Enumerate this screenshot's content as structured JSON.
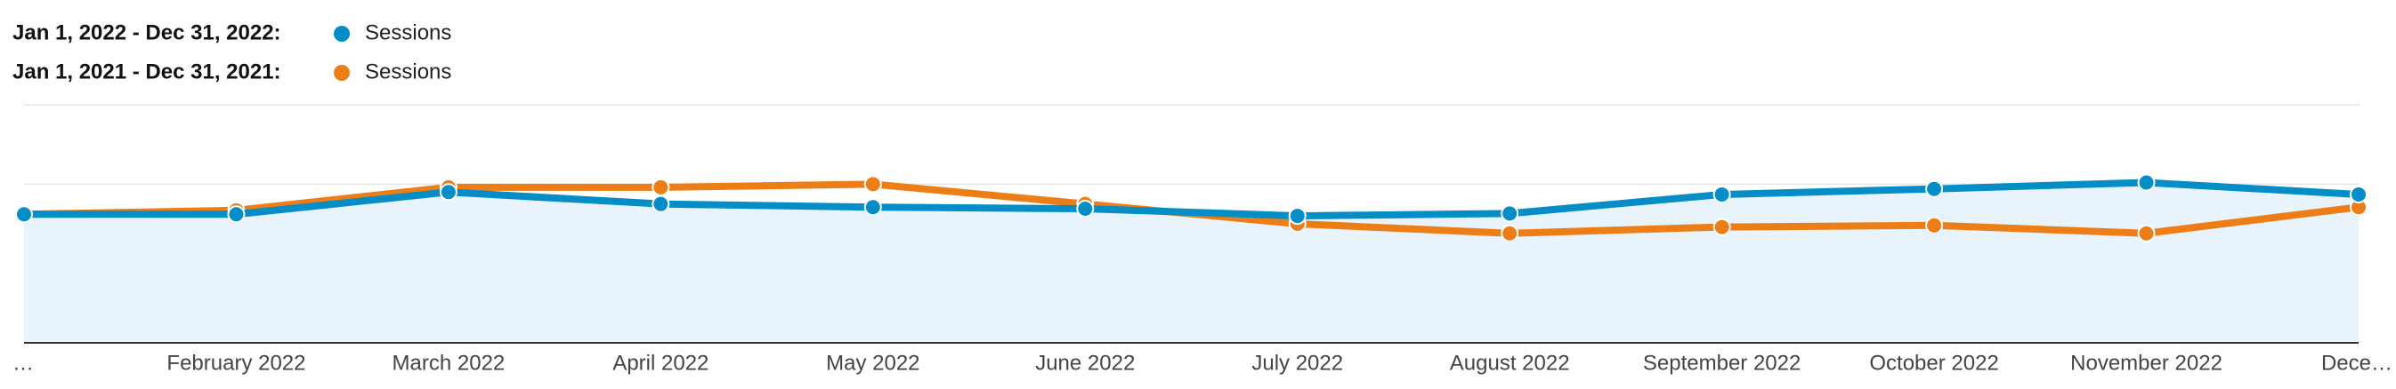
{
  "chart_data": {
    "type": "line",
    "categories": [
      "…",
      "February 2022",
      "March 2022",
      "April 2022",
      "May 2022",
      "June 2022",
      "July 2022",
      "August 2022",
      "September 2022",
      "October 2022",
      "November 2022",
      "Dece…"
    ],
    "series": [
      {
        "label": "Jan 1, 2022 - Dec 31, 2022:",
        "name": "Sessions",
        "color": "#058dc7",
        "values": [
          1.62,
          1.62,
          1.9,
          1.75,
          1.71,
          1.69,
          1.6,
          1.63,
          1.87,
          1.94,
          2.02,
          1.87
        ]
      },
      {
        "label": "Jan 1, 2021 - Dec 31, 2021:",
        "name": "Sessions",
        "color": "#ed7e17",
        "values": [
          1.62,
          1.67,
          1.96,
          1.96,
          2.0,
          1.75,
          1.5,
          1.38,
          1.46,
          1.48,
          1.38,
          1.71
        ]
      }
    ],
    "ylim": [
      0,
      3
    ],
    "grid": true
  }
}
